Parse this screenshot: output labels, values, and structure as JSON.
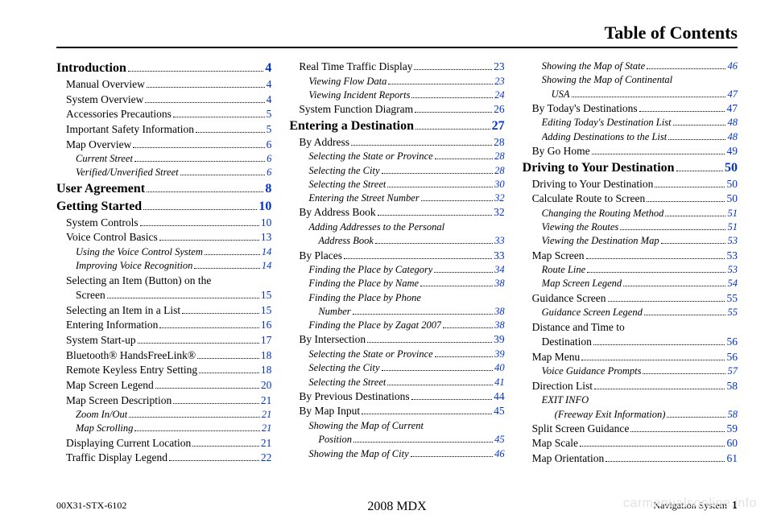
{
  "header": "Table of Contents",
  "columns": [
    [
      {
        "level": "h1",
        "label": "Introduction",
        "page": "4",
        "dots": true
      },
      {
        "level": "h2",
        "label": "Manual Overview",
        "page": "4",
        "dots": true
      },
      {
        "level": "h2",
        "label": "System Overview",
        "page": "4",
        "dots": true
      },
      {
        "level": "h2",
        "label": "Accessories Precautions",
        "page": "5",
        "dots": true
      },
      {
        "level": "h2",
        "label": "Important Safety Information",
        "page": "5",
        "dots": true
      },
      {
        "level": "h2",
        "label": "Map Overview",
        "page": "6",
        "dots": true
      },
      {
        "level": "h3",
        "label": "Current Street",
        "page": "6",
        "dots": true
      },
      {
        "level": "h3",
        "label": "Verified/Unverified Street",
        "page": "6",
        "dots": true
      },
      {
        "level": "h1",
        "label": "User Agreement",
        "page": "8",
        "dots": true
      },
      {
        "level": "h1",
        "label": "Getting Started",
        "page": "10",
        "dots": true
      },
      {
        "level": "h2",
        "label": "System Controls",
        "page": "10",
        "dots": true
      },
      {
        "level": "h2",
        "label": "Voice Control Basics",
        "page": "13",
        "dots": true
      },
      {
        "level": "h3",
        "label": "Using the Voice Control System",
        "page": "14",
        "dots": true
      },
      {
        "level": "h3",
        "label": "Improving Voice Recognition",
        "page": "14",
        "dots": true
      },
      {
        "level": "h2",
        "label": "Selecting an Item (Button) on the",
        "label2": "Screen",
        "page": "15",
        "dots": true,
        "wrap": true,
        "contIndent": "24px"
      },
      {
        "level": "h2",
        "label": "Selecting an Item in a List",
        "page": "15",
        "dots": true
      },
      {
        "level": "h2",
        "label": "Entering Information",
        "page": "16",
        "dots": true
      },
      {
        "level": "h2",
        "label": "System Start-up",
        "page": "17",
        "dots": true
      },
      {
        "level": "h2",
        "label": "Bluetooth® HandsFreeLink®",
        "page": "18",
        "dots": true
      },
      {
        "level": "h2",
        "label": "Remote Keyless Entry Setting",
        "page": "18",
        "dots": true
      },
      {
        "level": "h2",
        "label": "Map Screen Legend",
        "page": "20",
        "dots": true
      },
      {
        "level": "h2",
        "label": "Map Screen Description",
        "page": "21",
        "dots": true
      },
      {
        "level": "h3",
        "label": "Zoom In/Out",
        "page": "21",
        "dots": true
      },
      {
        "level": "h3",
        "label": "Map Scrolling",
        "page": "21",
        "dots": true
      },
      {
        "level": "h2",
        "label": "Displaying Current Location",
        "page": "21",
        "dots": true
      },
      {
        "level": "h2",
        "label": "Traffic Display Legend",
        "page": "22",
        "dots": true
      }
    ],
    [
      {
        "level": "h2",
        "label": "Real Time Traffic Display",
        "page": "23",
        "dots": true
      },
      {
        "level": "h3",
        "label": "Viewing Flow Data",
        "page": "23",
        "dots": true
      },
      {
        "level": "h3",
        "label": "Viewing Incident Reports",
        "page": "24",
        "dots": true
      },
      {
        "level": "h2",
        "label": "System Function Diagram",
        "page": "26",
        "dots": true
      },
      {
        "level": "h1",
        "label": "Entering a Destination",
        "page": "27",
        "dots": true
      },
      {
        "level": "h2",
        "label": "By Address",
        "page": "28",
        "dots": true
      },
      {
        "level": "h3",
        "label": "Selecting the State or Province",
        "page": "28",
        "dots": true
      },
      {
        "level": "h3",
        "label": "Selecting the City",
        "page": "28",
        "dots": true
      },
      {
        "level": "h3",
        "label": "Selecting the Street",
        "page": "30",
        "dots": true
      },
      {
        "level": "h3",
        "label": "Entering the Street Number",
        "page": "32",
        "dots": true
      },
      {
        "level": "h2",
        "label": "By Address Book",
        "page": "32",
        "dots": true
      },
      {
        "level": "h3",
        "label": "Adding Addresses to the Personal",
        "label2": "Address Book",
        "page": "33",
        "dots": true,
        "wrap": true,
        "contIndent": "36px"
      },
      {
        "level": "h2",
        "label": "By Places",
        "page": "33",
        "dots": true
      },
      {
        "level": "h3",
        "label": "Finding the Place by Category",
        "page": "34",
        "dots": true
      },
      {
        "level": "h3",
        "label": "Finding the Place by Name",
        "page": "38",
        "dots": true
      },
      {
        "level": "h3",
        "label": "Finding the Place by Phone",
        "label2": "Number",
        "page": "38",
        "dots": true,
        "wrap": true,
        "contIndent": "36px"
      },
      {
        "level": "h3",
        "label": "Finding the Place by Zagat 2007",
        "page": "38",
        "dots": true
      },
      {
        "level": "h2",
        "label": "By Intersection",
        "page": "39",
        "dots": true
      },
      {
        "level": "h3",
        "label": "Selecting the State or Province",
        "page": "39",
        "dots": true
      },
      {
        "level": "h3",
        "label": "Selecting the City",
        "page": "40",
        "dots": true
      },
      {
        "level": "h3",
        "label": "Selecting the Street",
        "page": "41",
        "dots": true
      },
      {
        "level": "h2",
        "label": "By Previous Destinations",
        "page": "44",
        "dots": true
      },
      {
        "level": "h2",
        "label": "By Map Input",
        "page": "45",
        "dots": true
      },
      {
        "level": "h3",
        "label": "Showing the Map of Current",
        "label2": "Position",
        "page": "45",
        "dots": true,
        "wrap": true,
        "contIndent": "36px"
      },
      {
        "level": "h3",
        "label": "Showing the Map of City",
        "page": "46",
        "dots": true
      }
    ],
    [
      {
        "level": "h3",
        "label": "Showing the Map of State",
        "page": "46",
        "dots": true
      },
      {
        "level": "h3",
        "label": "Showing the Map of Continental",
        "label2": "USA",
        "page": "47",
        "dots": true,
        "wrap": true,
        "contIndent": "36px"
      },
      {
        "level": "h2",
        "label": "By Today's Destinations",
        "page": "47",
        "dots": true
      },
      {
        "level": "h3",
        "label": "Editing Today's Destination List",
        "page": "48",
        "dots": true
      },
      {
        "level": "h3",
        "label": "Adding Destinations to the List",
        "page": "48",
        "dots": true
      },
      {
        "level": "h2",
        "label": "By Go Home",
        "page": "49",
        "dots": true
      },
      {
        "level": "h1",
        "label": "Driving to Your Destination",
        "page": "50",
        "dots": true
      },
      {
        "level": "h2",
        "label": "Driving to Your Destination",
        "page": "50",
        "dots": true
      },
      {
        "level": "h2",
        "label": "Calculate Route to Screen",
        "page": "50",
        "dots": true
      },
      {
        "level": "h3",
        "label": "Changing the Routing Method",
        "page": "51",
        "dots": true
      },
      {
        "level": "h3",
        "label": "Viewing the Routes",
        "page": "51",
        "dots": true
      },
      {
        "level": "h3",
        "label": "Viewing the Destination Map",
        "page": "53",
        "dots": true
      },
      {
        "level": "h2",
        "label": "Map Screen",
        "page": "53",
        "dots": true
      },
      {
        "level": "h3",
        "label": "Route Line",
        "page": "53",
        "dots": true
      },
      {
        "level": "h3",
        "label": "Map Screen Legend",
        "page": "54",
        "dots": true
      },
      {
        "level": "h2",
        "label": "Guidance Screen",
        "page": "55",
        "dots": true
      },
      {
        "level": "h3",
        "label": "Guidance Screen Legend",
        "page": "55",
        "dots": true
      },
      {
        "level": "h2",
        "label": "Distance and Time to",
        "label2": "Destination",
        "page": "56",
        "dots": true,
        "wrap": true,
        "contIndent": "24px"
      },
      {
        "level": "h2",
        "label": "Map Menu",
        "page": "56",
        "dots": true
      },
      {
        "level": "h3",
        "label": "Voice Guidance Prompts",
        "page": "57",
        "dots": true
      },
      {
        "level": "h2",
        "label": "Direction List",
        "page": "58",
        "dots": true
      },
      {
        "level": "h3",
        "label": "EXIT INFO",
        "label2": "(Freeway Exit Information)",
        "page": "58",
        "dots": true,
        "wrap": true,
        "contIndent": "40px"
      },
      {
        "level": "h2",
        "label": "Split Screen Guidance",
        "page": "59",
        "dots": true
      },
      {
        "level": "h2",
        "label": "Map Scale",
        "page": "60",
        "dots": true
      },
      {
        "level": "h2",
        "label": "Map Orientation",
        "page": "61",
        "dots": true
      }
    ]
  ],
  "footer": {
    "left": "00X31-STX-6102",
    "center": "2008  MDX",
    "right_label": "Navigation System",
    "right_page": "1"
  },
  "watermark": "carmanualsonline.info",
  "colors": {
    "link": "#0033cc",
    "text": "#000000",
    "bg": "#ffffff",
    "watermark": "#e2e2e2"
  }
}
